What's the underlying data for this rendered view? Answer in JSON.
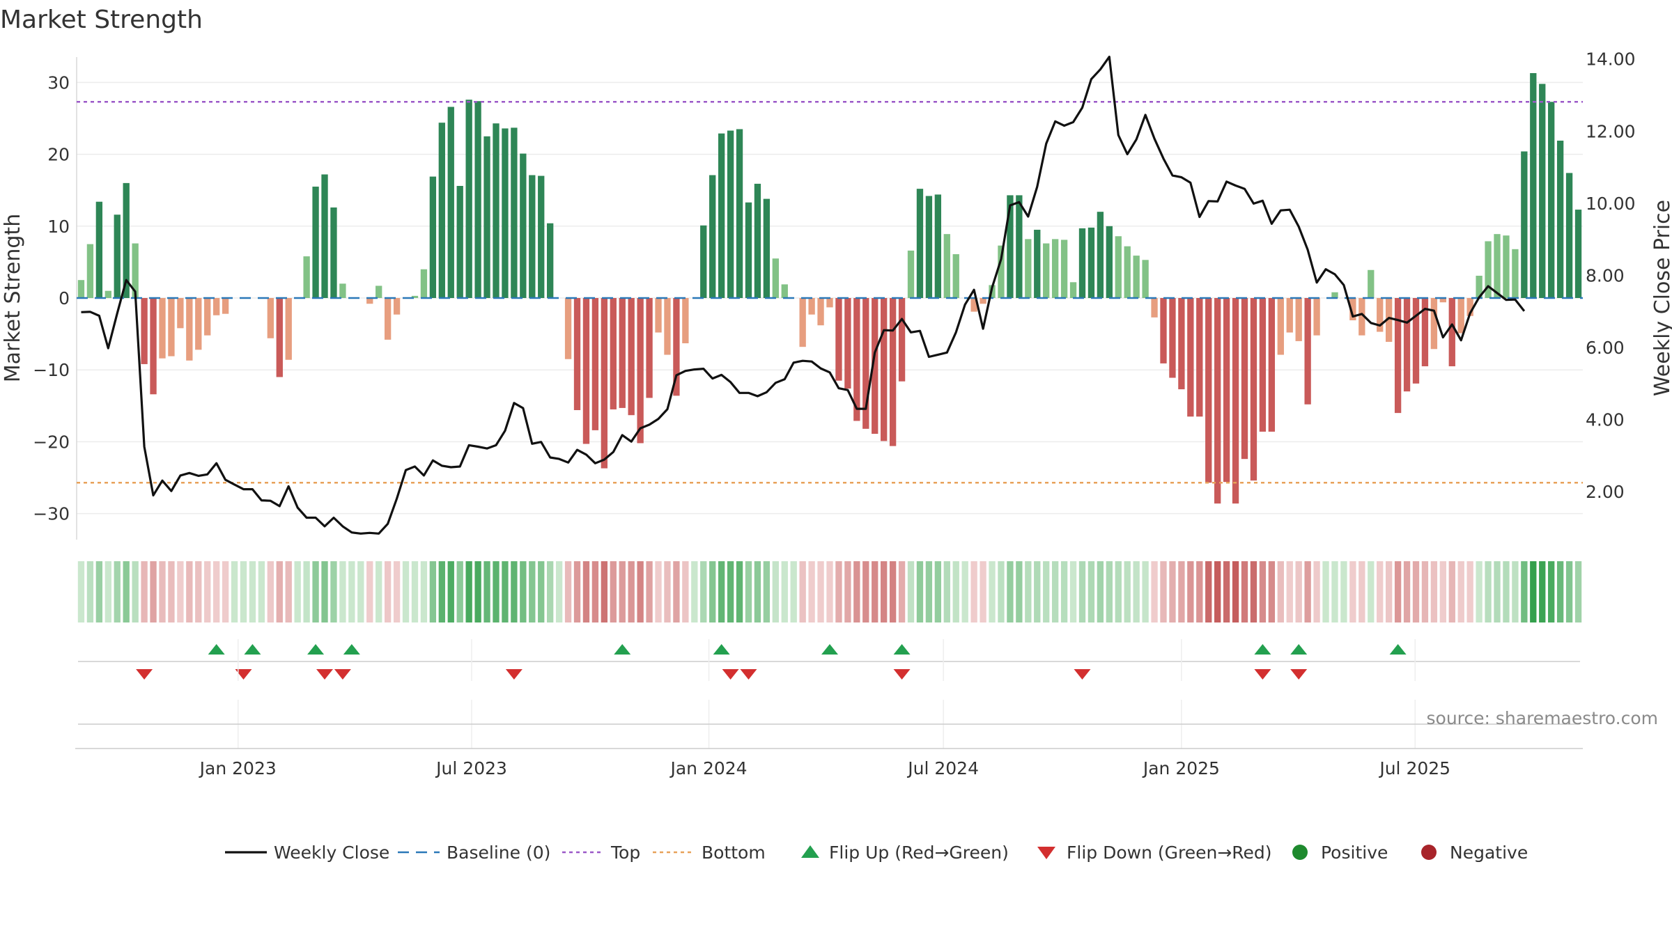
{
  "chart_data": {
    "type": "bar",
    "title": "Market Strength",
    "ylabel": "Market Strength",
    "y2label": "Weekly Close Price",
    "ylim": [
      -33,
      34
    ],
    "y2lim": [
      1.0,
      14.4
    ],
    "yticks": [
      -30,
      -20,
      -10,
      0,
      10,
      20,
      30
    ],
    "y2ticks": [
      2.0,
      4.0,
      6.0,
      8.0,
      10.0,
      12.0,
      14.0
    ],
    "y2tick_labels": [
      "2.00",
      "4.00",
      "6.00",
      "8.00",
      "10.00",
      "12.00",
      "14.00"
    ],
    "top_threshold": 27.3,
    "bottom_threshold": -25.7,
    "x_start": "2022-09-05",
    "x_end": "2025-09-15",
    "x_unit": "weekly (index 0 = first week)",
    "xticks": [
      {
        "label": "Jan 2023",
        "week": 17.4
      },
      {
        "label": "Jul 2023",
        "week": 43.3
      },
      {
        "label": "Jan 2024",
        "week": 69.6
      },
      {
        "label": "Jul 2024",
        "week": 95.6
      },
      {
        "label": "Jan 2025",
        "week": 122.0
      },
      {
        "label": "Jul 2025",
        "week": 147.9
      }
    ],
    "strength": [
      2.5,
      7.5,
      13.4,
      1,
      11.6,
      16,
      7.6,
      -9.2,
      -13.4,
      -8.4,
      -8.1,
      -4.2,
      -8.7,
      -7.2,
      -5.2,
      -2.4,
      -2.2,
      0,
      0,
      0,
      0,
      -5.6,
      -11,
      -8.6,
      0,
      5.8,
      15.5,
      17.2,
      12.6,
      2,
      0,
      0,
      -0.8,
      1.7,
      -5.8,
      -2.3,
      0,
      0.3,
      4,
      16.9,
      24.4,
      26.6,
      15.6,
      27.6,
      27.4,
      22.5,
      24.3,
      23.6,
      23.7,
      20.1,
      17.1,
      17,
      10.4,
      0,
      -8.5,
      -15.6,
      -20.3,
      -18.4,
      -23.7,
      -15.5,
      -15.3,
      -16.3,
      -20.2,
      -13.9,
      -4.8,
      -7.9,
      -13.6,
      -6.3,
      0,
      10.1,
      17.1,
      22.9,
      23.3,
      23.5,
      13.3,
      15.9,
      13.8,
      5.5,
      1.9,
      0,
      -6.8,
      -2.3,
      -3.8,
      -1.3,
      -11.5,
      -12.6,
      -17.1,
      -18.2,
      -18.9,
      -19.9,
      -20.6,
      -11.6,
      6.6,
      15.2,
      14.2,
      14.4,
      8.9,
      6.1,
      0,
      -1.9,
      -0.8,
      1.8,
      7.3,
      14.3,
      14.3,
      8.2,
      9.5,
      7.6,
      8.2,
      8.1,
      2.2,
      9.7,
      9.8,
      12,
      10,
      8.6,
      7.2,
      5.9,
      5.3,
      -2.7,
      -9.1,
      -11.1,
      -12.7,
      -16.5,
      -16.5,
      -25.7,
      -28.6,
      -25.6,
      -28.6,
      -22.4,
      -25.4,
      -18.6,
      -18.6,
      -7.9,
      -4.8,
      -6,
      -14.8,
      -5.2,
      0,
      0.8,
      0,
      -3.1,
      -5.2,
      3.9,
      -4.7,
      -6.1,
      -16,
      -13,
      -11.9,
      -9.5,
      -7.1,
      -0.6,
      -9.5,
      -4.9,
      -2.5,
      3.1,
      7.9,
      8.9,
      8.7,
      6.8,
      20.4,
      31.3,
      29.8,
      27.3,
      21.9,
      17.4,
      12.3
    ],
    "close": [
      6.98,
      6.99,
      6.88,
      5.98,
      6.95,
      7.87,
      7.55,
      3.25,
      1.9,
      2.31,
      2.02,
      2.45,
      2.52,
      2.44,
      2.48,
      2.79,
      2.33,
      2.2,
      2.07,
      2.07,
      1.76,
      1.75,
      1.6,
      2.15,
      1.56,
      1.28,
      1.28,
      1.04,
      1.28,
      1.04,
      0.87,
      0.84,
      0.86,
      0.84,
      1.11,
      1.81,
      2.6,
      2.7,
      2.45,
      2.87,
      2.72,
      2.68,
      2.7,
      3.29,
      3.25,
      3.2,
      3.29,
      3.69,
      4.46,
      4.32,
      3.33,
      3.38,
      2.95,
      2.91,
      2.81,
      3.16,
      3.03,
      2.79,
      2.89,
      3.1,
      3.57,
      3.39,
      3.76,
      3.86,
      4.02,
      4.29,
      5.23,
      5.35,
      5.39,
      5.41,
      5.14,
      5.24,
      5.04,
      4.74,
      4.74,
      4.65,
      4.76,
      5.02,
      5.12,
      5.58,
      5.63,
      5.61,
      5.42,
      5.31,
      4.87,
      4.82,
      4.3,
      4.3,
      5.86,
      6.48,
      6.47,
      6.79,
      6.42,
      6.46,
      5.74,
      5.8,
      5.86,
      6.42,
      7.19,
      7.6,
      6.52,
      7.66,
      8.45,
      9.94,
      10.03,
      9.63,
      10.46,
      11.65,
      12.27,
      12.15,
      12.25,
      12.65,
      13.44,
      13.71,
      14.06,
      11.89,
      11.36,
      11.77,
      12.45,
      11.79,
      11.24,
      10.77,
      10.72,
      10.57,
      9.62,
      10.06,
      10.05,
      10.6,
      10.49,
      10.4,
      9.99,
      10.07,
      9.43,
      9.8,
      9.82,
      9.35,
      8.71,
      7.8,
      8.17,
      8.03,
      7.73,
      6.86,
      6.93,
      6.68,
      6.61,
      6.82,
      6.76,
      6.69,
      6.88,
      7.07,
      7.02,
      6.28,
      6.64,
      6.2,
      6.95,
      7.39,
      7.7,
      7.51,
      7.32,
      7.33,
      7.01
    ],
    "flip_up_weeks": [
      15,
      19,
      26,
      30,
      60,
      71,
      83,
      91,
      131,
      135,
      146
    ],
    "flip_down_weeks": [
      7,
      18,
      27,
      29,
      48,
      72,
      74,
      91,
      111,
      131,
      135
    ],
    "source": "source: sharemaestro.com",
    "legend": [
      {
        "label": "Weekly Close",
        "kind": "line"
      },
      {
        "label": "Baseline (0)",
        "kind": "dash"
      },
      {
        "label": "Top",
        "kind": "dot"
      },
      {
        "label": "Bottom",
        "kind": "dotorange"
      },
      {
        "label": "Flip Up (Red→Green)",
        "kind": "up"
      },
      {
        "label": "Flip Down (Green→Red)",
        "kind": "down"
      },
      {
        "label": "Positive",
        "kind": "pos"
      },
      {
        "label": "Negative",
        "kind": "neg"
      }
    ],
    "colors": {
      "pos_strong": "#2e8656",
      "pos_weak": "#82c286",
      "neg_strong": "#c95a59",
      "neg_weak": "#e79e7f",
      "close": "#111111",
      "baseline": "#2a78b8",
      "top": "#9b59c8",
      "bottom": "#e8a25a",
      "flip_up": "#23a04f",
      "flip_down": "#d32f2f",
      "legend_pos": "#1e8a2e",
      "legend_neg": "#a8242a"
    }
  }
}
